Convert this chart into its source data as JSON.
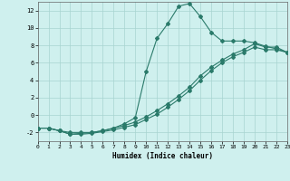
{
  "xlabel": "Humidex (Indice chaleur)",
  "bg_color": "#cff0ee",
  "grid_color": "#a8d4d0",
  "line_color": "#2a7a6a",
  "xlim": [
    0,
    23
  ],
  "ylim": [
    -3,
    13
  ],
  "xticks": [
    0,
    1,
    2,
    3,
    4,
    5,
    6,
    7,
    8,
    9,
    10,
    11,
    12,
    13,
    14,
    15,
    16,
    17,
    18,
    19,
    20,
    21,
    22,
    23
  ],
  "yticks": [
    -2,
    0,
    2,
    4,
    6,
    8,
    10,
    12
  ],
  "line1_x": [
    0,
    1,
    2,
    3,
    4,
    5,
    6,
    7,
    8,
    9,
    10,
    11,
    12,
    13,
    14,
    15,
    16,
    17,
    18,
    19,
    20,
    21,
    22,
    23
  ],
  "line1_y": [
    -1.5,
    -1.5,
    -1.8,
    -2.0,
    -2.0,
    -2.0,
    -1.8,
    -1.5,
    -1.2,
    -0.8,
    -0.2,
    0.5,
    1.3,
    2.2,
    3.2,
    4.5,
    5.5,
    6.3,
    7.0,
    7.5,
    8.2,
    7.8,
    7.8,
    7.2
  ],
  "line2_x": [
    0,
    1,
    2,
    3,
    4,
    5,
    6,
    7,
    8,
    9,
    10,
    11,
    12,
    13,
    14,
    15,
    16,
    17,
    18,
    19,
    20,
    21,
    22,
    23
  ],
  "line2_y": [
    -1.5,
    -1.5,
    -1.8,
    -2.2,
    -2.2,
    -2.1,
    -1.9,
    -1.7,
    -1.4,
    -1.1,
    -0.5,
    0.1,
    0.9,
    1.8,
    2.8,
    4.0,
    5.1,
    6.0,
    6.7,
    7.2,
    7.8,
    7.5,
    7.5,
    7.2
  ],
  "line3_x": [
    0,
    1,
    2,
    3,
    4,
    5,
    6,
    7,
    8,
    9,
    10,
    11,
    12,
    13,
    14,
    15,
    16,
    17,
    18,
    19,
    20,
    21,
    22,
    23
  ],
  "line3_y": [
    -1.5,
    -1.5,
    -1.8,
    -2.2,
    -2.1,
    -2.0,
    -1.8,
    -1.5,
    -1.0,
    -0.3,
    5.0,
    8.8,
    10.5,
    12.5,
    12.8,
    11.3,
    9.5,
    8.5,
    8.5,
    8.5,
    8.3,
    7.9,
    7.6,
    7.2
  ]
}
